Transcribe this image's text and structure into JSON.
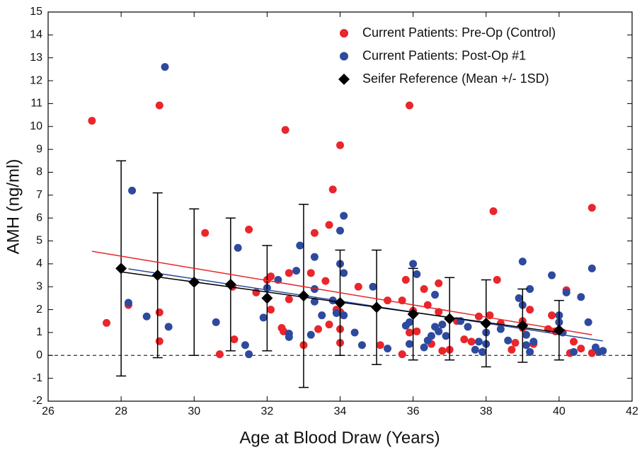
{
  "chart_data": {
    "type": "scatter",
    "x_label": "Age at Blood Draw (Years)",
    "y_label": "AMH (ng/ml)",
    "xlim": [
      26,
      42
    ],
    "ylim": [
      -2,
      15
    ],
    "xticks": [
      26,
      28,
      30,
      32,
      34,
      36,
      38,
      40,
      42
    ],
    "yticks": [
      -2,
      -1,
      0,
      1,
      2,
      3,
      4,
      5,
      6,
      7,
      8,
      9,
      10,
      11,
      12,
      13,
      14,
      15
    ],
    "reference_line": 0,
    "legend": "top-right",
    "series": [
      {
        "name": "Current Patients: Pre-Op (Control)",
        "type": "scatter",
        "color": "#e8262b",
        "x": [
          27.2,
          27.6,
          28.2,
          29.05,
          29.05,
          29.05,
          30.3,
          30.7,
          31.05,
          31.1,
          31.5,
          31.7,
          32.0,
          32.1,
          32.1,
          32.4,
          32.45,
          32.5,
          32.6,
          32.6,
          33.0,
          33.2,
          33.3,
          33.4,
          33.6,
          33.7,
          33.7,
          33.8,
          33.9,
          34.0,
          34.0,
          34.0,
          34.0,
          34.5,
          35.1,
          35.3,
          35.7,
          35.7,
          35.8,
          35.9,
          35.9,
          36.0,
          36.1,
          36.3,
          36.4,
          36.5,
          36.7,
          36.7,
          36.8,
          37.0,
          37.2,
          37.4,
          37.6,
          37.8,
          38.1,
          38.2,
          38.3,
          38.4,
          38.7,
          38.8,
          39.0,
          39.0,
          39.2,
          39.3,
          39.7,
          39.8,
          39.9,
          40.2,
          40.3,
          40.4,
          40.6,
          40.9,
          40.9
        ],
        "values": [
          10.25,
          1.42,
          2.2,
          10.92,
          1.88,
          0.62,
          5.35,
          0.05,
          3.0,
          0.7,
          5.5,
          2.75,
          3.3,
          3.45,
          2.0,
          1.2,
          1.05,
          9.85,
          3.6,
          2.45,
          0.45,
          3.6,
          5.35,
          1.15,
          3.25,
          5.7,
          1.35,
          7.25,
          2.0,
          9.18,
          1.9,
          1.15,
          0.55,
          3.0,
          0.45,
          2.4,
          2.4,
          0.05,
          3.3,
          10.92,
          1.0,
          1.95,
          1.05,
          2.9,
          2.2,
          0.5,
          1.9,
          3.15,
          0.2,
          0.25,
          1.5,
          0.7,
          0.6,
          1.7,
          1.75,
          6.3,
          3.3,
          1.4,
          0.25,
          0.55,
          1.5,
          1.2,
          2.0,
          0.5,
          1.15,
          1.75,
          1.05,
          2.85,
          0.1,
          0.6,
          0.3,
          6.45,
          0.1
        ]
      },
      {
        "name": "Current Patients: Post-Op #1",
        "type": "scatter",
        "color": "#2e4a9e",
        "x": [
          28.2,
          28.3,
          28.7,
          29.2,
          29.3,
          30.6,
          31.2,
          31.4,
          31.5,
          31.9,
          32.0,
          32.3,
          32.6,
          32.6,
          32.8,
          32.9,
          33.2,
          33.3,
          33.3,
          33.3,
          33.5,
          33.8,
          33.9,
          34.0,
          34.0,
          34.1,
          34.1,
          34.1,
          34.4,
          34.6,
          34.9,
          35.3,
          35.8,
          35.9,
          35.9,
          36.0,
          36.1,
          36.3,
          36.4,
          36.5,
          36.6,
          36.6,
          36.7,
          36.8,
          36.9,
          37.3,
          37.5,
          37.7,
          37.8,
          37.9,
          38.0,
          38.0,
          38.4,
          38.6,
          38.9,
          39.0,
          39.0,
          39.1,
          39.1,
          39.2,
          39.2,
          39.3,
          39.8,
          40.0,
          40.0,
          40.1,
          40.2,
          40.4,
          40.6,
          40.8,
          40.9,
          41.0,
          41.1,
          41.2
        ],
        "values": [
          2.3,
          7.2,
          1.7,
          12.6,
          1.25,
          1.45,
          4.7,
          0.45,
          0.05,
          1.65,
          2.95,
          3.3,
          0.95,
          0.8,
          3.7,
          4.8,
          0.9,
          2.35,
          2.9,
          4.3,
          1.75,
          2.4,
          1.85,
          5.45,
          4.0,
          6.1,
          3.6,
          1.75,
          1.0,
          0.45,
          3.0,
          0.3,
          1.3,
          1.45,
          0.5,
          4.0,
          3.55,
          0.35,
          0.65,
          0.85,
          1.25,
          2.65,
          1.05,
          1.35,
          0.85,
          1.5,
          1.25,
          0.25,
          0.6,
          0.15,
          1.0,
          0.5,
          1.15,
          0.65,
          2.5,
          4.1,
          2.2,
          0.9,
          0.45,
          2.9,
          0.15,
          0.6,
          3.5,
          1.75,
          1.45,
          1.0,
          2.75,
          0.15,
          2.55,
          1.45,
          3.8,
          0.35,
          0.15,
          0.2
        ]
      },
      {
        "name": "Seifer Reference (Mean +/- 1SD)",
        "type": "errorbar",
        "color": "#000000",
        "x": [
          28,
          29,
          30,
          31,
          32,
          33,
          34,
          35,
          36,
          37,
          38,
          39,
          40
        ],
        "values": [
          3.8,
          3.5,
          3.2,
          3.1,
          2.5,
          2.6,
          2.3,
          2.1,
          1.8,
          1.6,
          1.4,
          1.3,
          1.1
        ],
        "errors": [
          4.7,
          3.6,
          3.2,
          2.9,
          2.3,
          4.0,
          2.3,
          2.5,
          2.0,
          1.8,
          1.9,
          1.6,
          1.3
        ]
      }
    ],
    "trend_lines": [
      {
        "color": "#e8262b",
        "x": [
          27.2,
          40.9
        ],
        "values": [
          4.55,
          0.9
        ]
      },
      {
        "color": "#2e4a9e",
        "x": [
          28.2,
          41.2
        ],
        "values": [
          3.78,
          0.63
        ]
      },
      {
        "color": "#000000",
        "x": [
          28,
          40
        ],
        "values": [
          3.65,
          1.0
        ]
      }
    ]
  }
}
